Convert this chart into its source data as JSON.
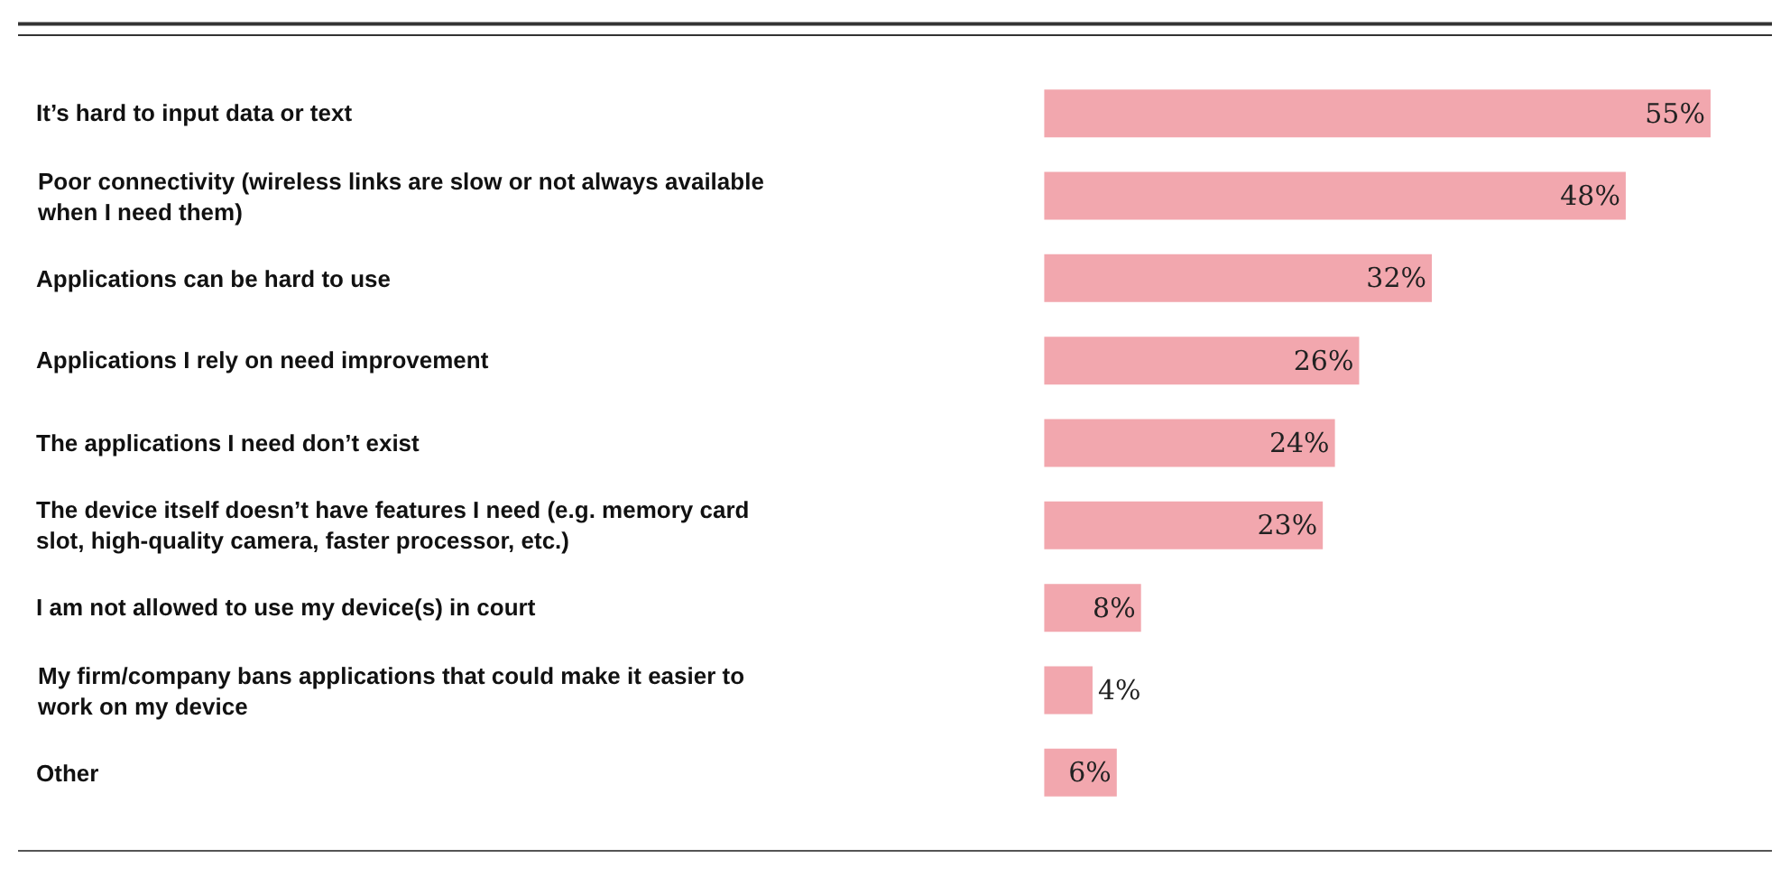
{
  "chart_data": {
    "type": "bar",
    "orientation": "horizontal",
    "categories": [
      "It’s hard to input data or text",
      "Poor connectivity (wireless links are slow or not always available when I need them)",
      "Applications can be hard to use",
      "Applications I rely on need improvement",
      "The applications I need don’t exist",
      "The device itself doesn’t have features I need (e.g. memory card slot, high-quality camera, faster processor, etc.)",
      "I am not allowed to use my device(s) in court",
      "My firm/company bans applications that could make it easier to work on my device",
      "Other"
    ],
    "values": [
      55,
      48,
      32,
      26,
      24,
      23,
      8,
      4,
      6
    ],
    "value_labels": [
      "55%",
      "48%",
      "32%",
      "26%",
      "24%",
      "23%",
      "8%",
      "4%",
      "6%"
    ],
    "color": "#f2a7ae",
    "tick_labels": false
  }
}
